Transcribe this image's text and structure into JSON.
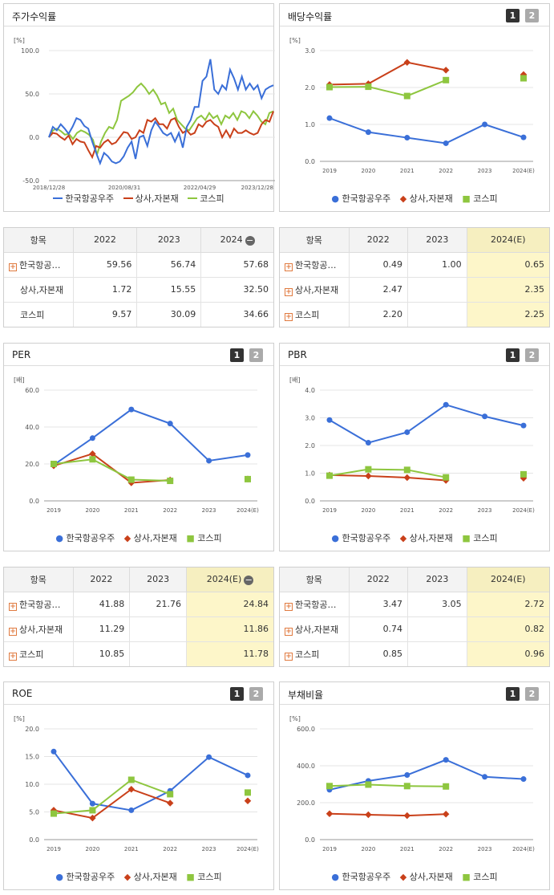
{
  "colors": {
    "company": "#3a6fd8",
    "sector": "#c9401a",
    "kospi": "#8ec63f",
    "highlight": "#fdf6c9"
  },
  "pager": {
    "one": "1",
    "two": "2"
  },
  "legend": {
    "company": "한국항공우주",
    "sector": "상사,자본재",
    "kospi": "코스피"
  },
  "stock_return": {
    "title": "주가수익률",
    "unit": "[%]",
    "chart_data": {
      "type": "line",
      "x_ticks": [
        "2018/12/28",
        "2020/08/31",
        "2022/04/29",
        "2023/12/28"
      ],
      "y_ticks": [
        "100.0",
        "50.0",
        "0.0",
        "-50.0"
      ],
      "ylim": [
        -50,
        100
      ],
      "series": [
        {
          "name": "한국항공우주",
          "key": "company",
          "values": [
            0,
            12,
            8,
            15,
            10,
            4,
            12,
            22,
            20,
            13,
            10,
            -5,
            -18,
            -30,
            -18,
            -22,
            -28,
            -30,
            -28,
            -22,
            -12,
            -5,
            -25,
            0,
            2,
            -10,
            8,
            18,
            12,
            5,
            2,
            5,
            -5,
            5,
            -12,
            12,
            20,
            35,
            35,
            65,
            70,
            90,
            55,
            50,
            60,
            55,
            78,
            68,
            55,
            70,
            55,
            62,
            55,
            60,
            45,
            55,
            58,
            60
          ]
        },
        {
          "name": "상사,자본재",
          "key": "sector",
          "values": [
            0,
            5,
            4,
            0,
            -3,
            2,
            -8,
            -2,
            -5,
            -6,
            -15,
            -23,
            -10,
            -12,
            -6,
            -3,
            -8,
            -6,
            0,
            6,
            5,
            -2,
            0,
            8,
            5,
            20,
            18,
            22,
            15,
            15,
            10,
            20,
            22,
            12,
            5,
            8,
            3,
            5,
            15,
            12,
            18,
            20,
            15,
            12,
            0,
            8,
            0,
            10,
            5,
            5,
            8,
            5,
            3,
            5,
            15,
            20,
            18,
            30
          ]
        },
        {
          "name": "코스피",
          "key": "kospi",
          "values": [
            0,
            8,
            10,
            7,
            3,
            4,
            -2,
            5,
            8,
            6,
            3,
            -3,
            -20,
            -5,
            5,
            12,
            10,
            20,
            42,
            45,
            48,
            52,
            58,
            62,
            57,
            50,
            55,
            48,
            38,
            40,
            28,
            33,
            20,
            15,
            10,
            8,
            15,
            22,
            25,
            20,
            28,
            22,
            25,
            15,
            25,
            22,
            28,
            20,
            30,
            28,
            22,
            30,
            25,
            18,
            15,
            28,
            30
          ]
        }
      ]
    }
  },
  "dividend": {
    "title": "배당수익률",
    "unit": "[%]",
    "chart_data": {
      "type": "line",
      "categories": [
        "2019",
        "2020",
        "2021",
        "2022",
        "2023",
        "2024(E)"
      ],
      "y_ticks": [
        "3.0",
        "2.0",
        "1.0",
        "0.0"
      ],
      "ylim": [
        0,
        3
      ],
      "series": [
        {
          "name": "한국항공우주",
          "key": "company",
          "values": [
            1.17,
            0.79,
            0.64,
            0.49,
            1.0,
            0.65
          ]
        },
        {
          "name": "상사,자본재",
          "key": "sector",
          "values": [
            2.08,
            2.1,
            2.68,
            2.47,
            null,
            2.35
          ]
        },
        {
          "name": "코스피",
          "key": "kospi",
          "values": [
            2.01,
            2.02,
            1.77,
            2.2,
            null,
            2.25
          ]
        }
      ]
    }
  },
  "table_return": {
    "headers": [
      "항목",
      "2022",
      "2023",
      "2024"
    ],
    "rows": [
      {
        "label": "한국항공…",
        "plus": true,
        "values": [
          "59.56",
          "56.74",
          "57.68"
        ]
      },
      {
        "label": "상사,자본재",
        "plus": false,
        "values": [
          "1.72",
          "15.55",
          "32.50"
        ]
      },
      {
        "label": "코스피",
        "plus": false,
        "values": [
          "9.57",
          "30.09",
          "34.66"
        ]
      }
    ]
  },
  "table_dividend": {
    "headers": [
      "항목",
      "2022",
      "2023",
      "2024(E)"
    ],
    "rows": [
      {
        "label": "한국항공…",
        "plus": true,
        "values": [
          "0.49",
          "1.00",
          "0.65"
        ]
      },
      {
        "label": "상사,자본재",
        "plus": true,
        "values": [
          "2.47",
          "",
          "2.35"
        ]
      },
      {
        "label": "코스피",
        "plus": true,
        "values": [
          "2.20",
          "",
          "2.25"
        ]
      }
    ]
  },
  "per": {
    "title": "PER",
    "unit": "[배]",
    "chart_data": {
      "type": "line",
      "categories": [
        "2019",
        "2020",
        "2021",
        "2022",
        "2023",
        "2024(E)"
      ],
      "y_ticks": [
        "60.0",
        "40.0",
        "20.0",
        "0.0"
      ],
      "ylim": [
        0,
        60
      ],
      "series": [
        {
          "name": "한국항공우주",
          "key": "company",
          "values": [
            19.5,
            34.0,
            49.5,
            41.88,
            21.76,
            24.84
          ]
        },
        {
          "name": "상사,자본재",
          "key": "sector",
          "values": [
            19.0,
            25.5,
            9.8,
            11.29,
            null,
            11.86
          ]
        },
        {
          "name": "코스피",
          "key": "kospi",
          "values": [
            20.0,
            22.5,
            11.5,
            10.85,
            null,
            11.78
          ]
        }
      ]
    }
  },
  "pbr": {
    "title": "PBR",
    "unit": "[배]",
    "chart_data": {
      "type": "line",
      "categories": [
        "2019",
        "2020",
        "2021",
        "2022",
        "2023",
        "2024(E)"
      ],
      "y_ticks": [
        "4.0",
        "3.0",
        "2.0",
        "1.0",
        "0.0"
      ],
      "ylim": [
        0,
        4
      ],
      "series": [
        {
          "name": "한국항공우주",
          "key": "company",
          "values": [
            2.92,
            2.1,
            2.48,
            3.47,
            3.05,
            2.72
          ]
        },
        {
          "name": "상사,자본재",
          "key": "sector",
          "values": [
            0.93,
            0.9,
            0.84,
            0.74,
            null,
            0.82
          ]
        },
        {
          "name": "코스피",
          "key": "kospi",
          "values": [
            0.91,
            1.14,
            1.12,
            0.85,
            null,
            0.96
          ]
        }
      ]
    }
  },
  "table_per": {
    "headers": [
      "항목",
      "2022",
      "2023",
      "2024(E)"
    ],
    "rows": [
      {
        "label": "한국항공…",
        "plus": true,
        "values": [
          "41.88",
          "21.76",
          "24.84"
        ]
      },
      {
        "label": "상사,자본재",
        "plus": true,
        "values": [
          "11.29",
          "",
          "11.86"
        ]
      },
      {
        "label": "코스피",
        "plus": true,
        "values": [
          "10.85",
          "",
          "11.78"
        ]
      }
    ]
  },
  "table_pbr": {
    "headers": [
      "항목",
      "2022",
      "2023",
      "2024(E)"
    ],
    "rows": [
      {
        "label": "한국항공…",
        "plus": true,
        "values": [
          "3.47",
          "3.05",
          "2.72"
        ]
      },
      {
        "label": "상사,자본재",
        "plus": true,
        "values": [
          "0.74",
          "",
          "0.82"
        ]
      },
      {
        "label": "코스피",
        "plus": true,
        "values": [
          "0.85",
          "",
          "0.96"
        ]
      }
    ]
  },
  "roe": {
    "title": "ROE",
    "unit": "[%]",
    "chart_data": {
      "type": "line",
      "categories": [
        "2019",
        "2020",
        "2021",
        "2022",
        "2023",
        "2024(E)"
      ],
      "y_ticks": [
        "20.0",
        "15.0",
        "10.0",
        "5.0",
        "0.0"
      ],
      "ylim": [
        0,
        20
      ],
      "series": [
        {
          "name": "한국항공우주",
          "key": "company",
          "values": [
            15.9,
            6.5,
            5.3,
            8.8,
            14.9,
            11.6
          ]
        },
        {
          "name": "상사,자본재",
          "key": "sector",
          "values": [
            5.3,
            3.9,
            9.1,
            6.6,
            null,
            7.0
          ]
        },
        {
          "name": "코스피",
          "key": "kospi",
          "values": [
            4.7,
            5.3,
            10.8,
            8.2,
            null,
            8.5
          ]
        }
      ]
    }
  },
  "debt": {
    "title": "부채비율",
    "unit": "[%]",
    "chart_data": {
      "type": "line",
      "categories": [
        "2019",
        "2020",
        "2021",
        "2022",
        "2023",
        "2024(E)"
      ],
      "y_ticks": [
        "600.0",
        "400.0",
        "200.0",
        "0.0"
      ],
      "ylim": [
        0,
        600
      ],
      "series": [
        {
          "name": "한국항공우주",
          "key": "company",
          "values": [
            270,
            318,
            350,
            432,
            340,
            328
          ]
        },
        {
          "name": "상사,자본재",
          "key": "sector",
          "values": [
            140,
            135,
            130,
            138,
            null,
            null
          ]
        },
        {
          "name": "코스피",
          "key": "kospi",
          "values": [
            290,
            298,
            290,
            288,
            null,
            null
          ]
        }
      ]
    }
  }
}
